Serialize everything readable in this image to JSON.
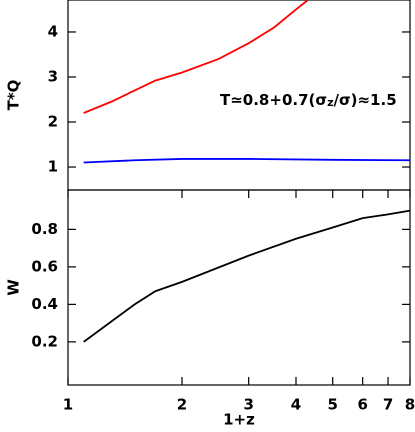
{
  "chart_data": [
    {
      "type": "line",
      "ylabel": "T*Q",
      "xscale": "log",
      "xlim": [
        1,
        8
      ],
      "ylim": [
        0.49,
        4.71
      ],
      "yticks": [
        1,
        2,
        3,
        4
      ],
      "annotation": [
        "T≃0.8+0.7(σ",
        "z",
        "/σ)≈1.5"
      ],
      "series": [
        {
          "color": "#ff0000",
          "x": [
            1.1,
            1.3,
            1.5,
            1.7,
            2,
            2.5,
            3,
            3.5,
            4,
            4.3
          ],
          "values": [
            2.2,
            2.45,
            2.7,
            2.92,
            3.1,
            3.4,
            3.75,
            4.1,
            4.5,
            4.71
          ]
        },
        {
          "color": "#0000ff",
          "x": [
            1.1,
            1.5,
            2,
            3,
            5,
            8
          ],
          "values": [
            1.1,
            1.15,
            1.18,
            1.18,
            1.16,
            1.15
          ]
        }
      ]
    },
    {
      "type": "line",
      "ylabel": "W",
      "xlabel": "1+z",
      "xscale": "log",
      "xlim": [
        1,
        8
      ],
      "xticks": [
        1,
        2,
        3,
        4,
        5,
        6,
        7,
        8
      ],
      "ylim": [
        -0.03,
        1.01
      ],
      "yticks": [
        0.2,
        0.4,
        0.6,
        0.8
      ],
      "series": [
        {
          "color": "#000000",
          "x": [
            1.1,
            1.5,
            1.7,
            2,
            3,
            4,
            5,
            6,
            7,
            8
          ],
          "values": [
            0.2,
            0.4,
            0.47,
            0.52,
            0.66,
            0.75,
            0.81,
            0.86,
            0.88,
            0.9
          ]
        }
      ]
    }
  ]
}
